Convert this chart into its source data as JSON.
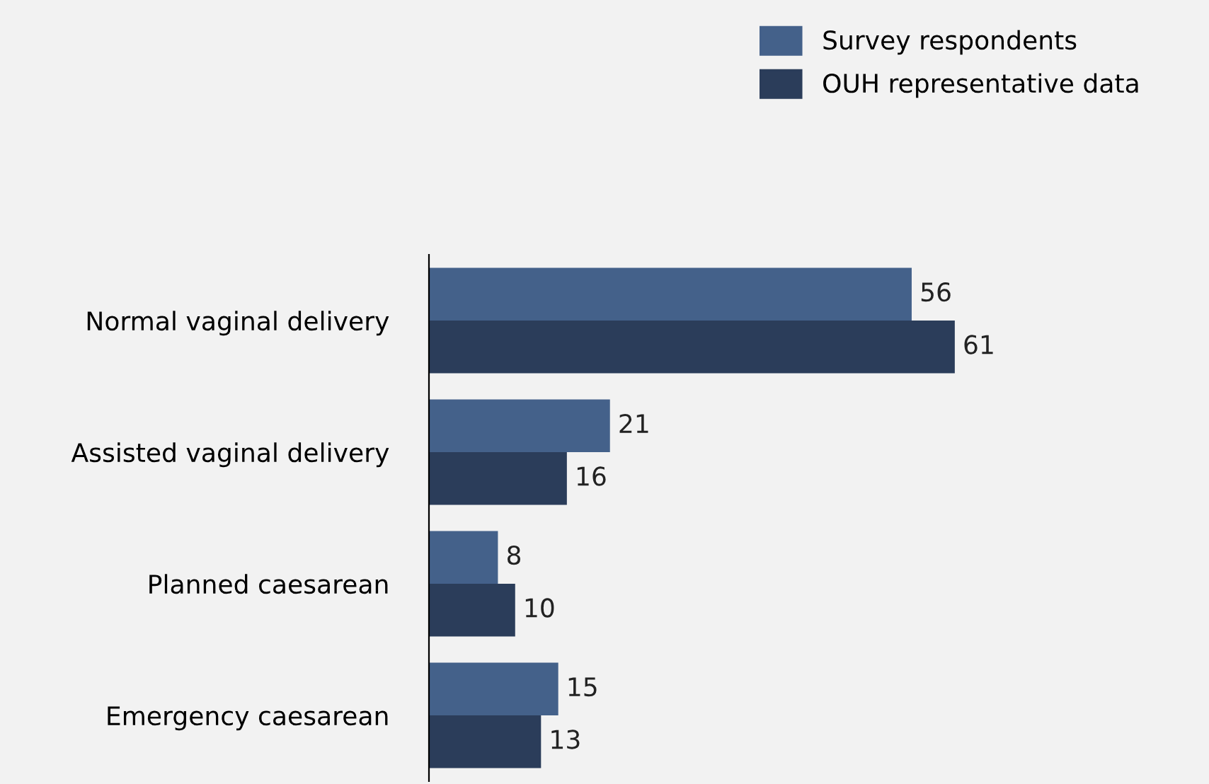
{
  "chart_data": {
    "type": "bar",
    "orientation": "horizontal",
    "categories": [
      "Normal vaginal delivery",
      "Assisted vaginal delivery",
      "Planned caesarean",
      "Emergency caesarean"
    ],
    "series": [
      {
        "name": "Survey respondents",
        "color": "#44618a",
        "values": [
          56,
          21,
          8,
          15
        ]
      },
      {
        "name": "OUH representative data",
        "color": "#2b3d5a",
        "values": [
          61,
          16,
          10,
          13
        ]
      }
    ],
    "data_labels": true,
    "legend": "top right",
    "grid": false
  }
}
